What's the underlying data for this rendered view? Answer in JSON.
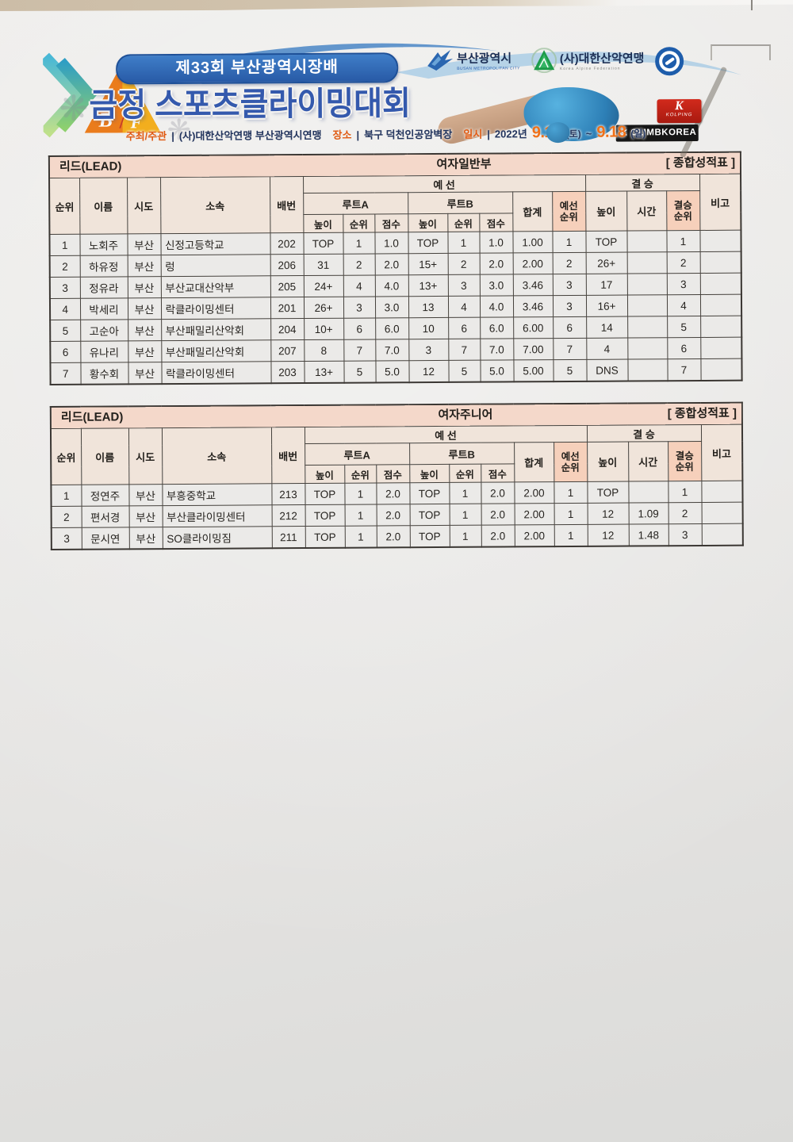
{
  "colors": {
    "accent_blue": "#2f5cb4",
    "accent_red": "#b1462c",
    "title_bar_bg": "#f4d8ca",
    "header_bg": "#f0e4da",
    "header_highlight_bg": "#f6d0bb"
  },
  "banner": {
    "edition": "제33회 부산광역시장배",
    "title": "금정 스포츠클라이밍대회",
    "bf": {
      "b": "B",
      "slash": "/",
      "f": "F"
    },
    "info": {
      "host_label": "주최/주관",
      "sep": "|",
      "host": "(사)대한산악연맹 부산광역시연맹",
      "place_label": "장소",
      "place": "북구 덕천인공암벽장",
      "date_label": "일시",
      "year": "2022년",
      "date_start": "9.17",
      "date_start_day": "(토)",
      "dash": "~",
      "date_end": "9.18",
      "date_end_day": "(일)"
    },
    "logos": {
      "busan": {
        "name": "부산광역시",
        "sub": "BUSAN METROPOLITAN CITY"
      },
      "kaf": {
        "name": "(사)대한산악연맹",
        "sub": "Korea Alpine Federation"
      },
      "kolping": {
        "k": "K",
        "sub": "KOLPING"
      },
      "climbkorea": {
        "text": "≪ CLIMBKOREA"
      }
    }
  },
  "hdr": {
    "rank": "순위",
    "name": "이름",
    "region": "시도",
    "team": "소속",
    "bib": "배번",
    "prelim": "예 선",
    "final": "결 승",
    "note": "비고",
    "routeA": "루트A",
    "routeB": "루트B",
    "height": "높이",
    "sub_rank": "순위",
    "score": "점수",
    "total": "합계",
    "prelim_rank": "예선\n순위",
    "time": "시간",
    "final_rank": "결승\n순위"
  },
  "column_keys": [
    "rank",
    "name",
    "region",
    "team",
    "bib",
    "routea-height",
    "routea-rank",
    "routea-score",
    "routeb-height",
    "routeb-rank",
    "routeb-score",
    "prelim-total",
    "prelim-rank",
    "final-height",
    "final-time",
    "final-rank",
    "note"
  ],
  "tables": [
    {
      "event": "리드(LEAD)",
      "division": "여자일반부",
      "sheet": "[ 종합성적표 ]",
      "rows": [
        [
          "1",
          "노회주",
          "부산",
          "신정고등학교",
          "202",
          "TOP",
          "1",
          "1.0",
          "TOP",
          "1",
          "1.0",
          "1.00",
          "1",
          "TOP",
          "",
          "1",
          ""
        ],
        [
          "2",
          "하유정",
          "부산",
          "렁",
          "206",
          "31",
          "2",
          "2.0",
          "15+",
          "2",
          "2.0",
          "2.00",
          "2",
          "26+",
          "",
          "2",
          ""
        ],
        [
          "3",
          "정유라",
          "부산",
          "부산교대산악부",
          "205",
          "24+",
          "4",
          "4.0",
          "13+",
          "3",
          "3.0",
          "3.46",
          "3",
          "17",
          "",
          "3",
          ""
        ],
        [
          "4",
          "박세리",
          "부산",
          "락클라이밍센터",
          "201",
          "26+",
          "3",
          "3.0",
          "13",
          "4",
          "4.0",
          "3.46",
          "3",
          "16+",
          "",
          "4",
          ""
        ],
        [
          "5",
          "고순아",
          "부산",
          "부산패밀리산악회",
          "204",
          "10+",
          "6",
          "6.0",
          "10",
          "6",
          "6.0",
          "6.00",
          "6",
          "14",
          "",
          "5",
          ""
        ],
        [
          "6",
          "유나리",
          "부산",
          "부산패밀리산악회",
          "207",
          "8",
          "7",
          "7.0",
          "3",
          "7",
          "7.0",
          "7.00",
          "7",
          "4",
          "",
          "6",
          ""
        ],
        [
          "7",
          "황수회",
          "부산",
          "락클라이밍센터",
          "203",
          "13+",
          "5",
          "5.0",
          "12",
          "5",
          "5.0",
          "5.00",
          "5",
          "DNS",
          "",
          "7",
          ""
        ]
      ]
    },
    {
      "event": "리드(LEAD)",
      "division": "여자주니어",
      "sheet": "[ 종합성적표 ]",
      "rows": [
        [
          "1",
          "정연주",
          "부산",
          "부흥중학교",
          "213",
          "TOP",
          "1",
          "2.0",
          "TOP",
          "1",
          "2.0",
          "2.00",
          "1",
          "TOP",
          "",
          "1",
          ""
        ],
        [
          "2",
          "편서경",
          "부산",
          "부산클라이밍센터",
          "212",
          "TOP",
          "1",
          "2.0",
          "TOP",
          "1",
          "2.0",
          "2.00",
          "1",
          "12",
          "1.09",
          "2",
          ""
        ],
        [
          "3",
          "문시연",
          "부산",
          "SO클라이밍짐",
          "211",
          "TOP",
          "1",
          "2.0",
          "TOP",
          "1",
          "2.0",
          "2.00",
          "1",
          "12",
          "1.48",
          "3",
          ""
        ]
      ]
    }
  ]
}
